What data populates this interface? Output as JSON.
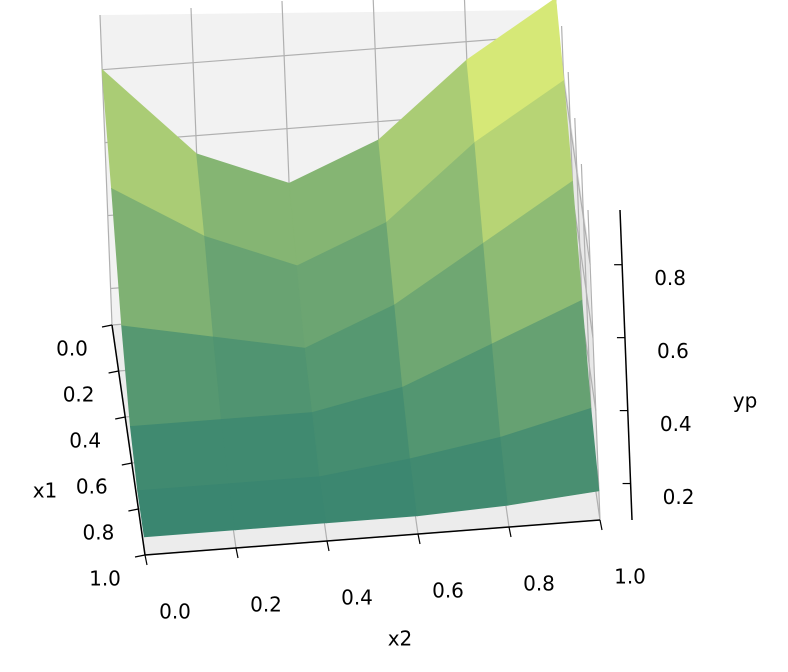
{
  "chart_data": {
    "type": "surface",
    "xlabel": "x2",
    "ylabel": "x1",
    "zlabel": "yp",
    "x2": [
      0,
      0.2,
      0.4,
      0.6,
      0.8,
      1.0
    ],
    "x1": [
      0,
      0.2,
      0.4,
      0.6,
      0.8,
      1.0
    ],
    "z": [
      [
        0.8,
        0.55,
        0.45,
        0.55,
        0.75,
        0.9
      ],
      [
        0.6,
        0.45,
        0.35,
        0.45,
        0.65,
        0.8
      ],
      [
        0.35,
        0.3,
        0.25,
        0.35,
        0.5,
        0.65
      ],
      [
        0.2,
        0.2,
        0.2,
        0.25,
        0.35,
        0.45
      ],
      [
        0.15,
        0.15,
        0.15,
        0.18,
        0.22,
        0.28
      ],
      [
        0.15,
        0.15,
        0.15,
        0.15,
        0.16,
        0.18
      ]
    ],
    "colormap": [
      "#3a8670",
      "#f5fb78"
    ],
    "x2ticks": [
      {
        "value": 0,
        "label": "0.0"
      },
      {
        "value": 0.2,
        "label": "0.2"
      },
      {
        "value": 0.4,
        "label": "0.4"
      },
      {
        "value": 0.6,
        "label": "0.6"
      },
      {
        "value": 0.8,
        "label": "0.8"
      },
      {
        "value": 1,
        "label": "1.0"
      }
    ],
    "x1ticks": [
      {
        "value": 0,
        "label": "0.0"
      },
      {
        "value": 0.2,
        "label": "0.2"
      },
      {
        "value": 0.4,
        "label": "0.4"
      },
      {
        "value": 0.6,
        "label": "0.6"
      },
      {
        "value": 0.8,
        "label": "0.8"
      },
      {
        "value": 1,
        "label": "1.0"
      }
    ],
    "zticks": [
      0.2,
      0.4,
      0.6,
      0.8
    ],
    "zlim": [
      0.1,
      0.95
    ],
    "grid": true
  }
}
